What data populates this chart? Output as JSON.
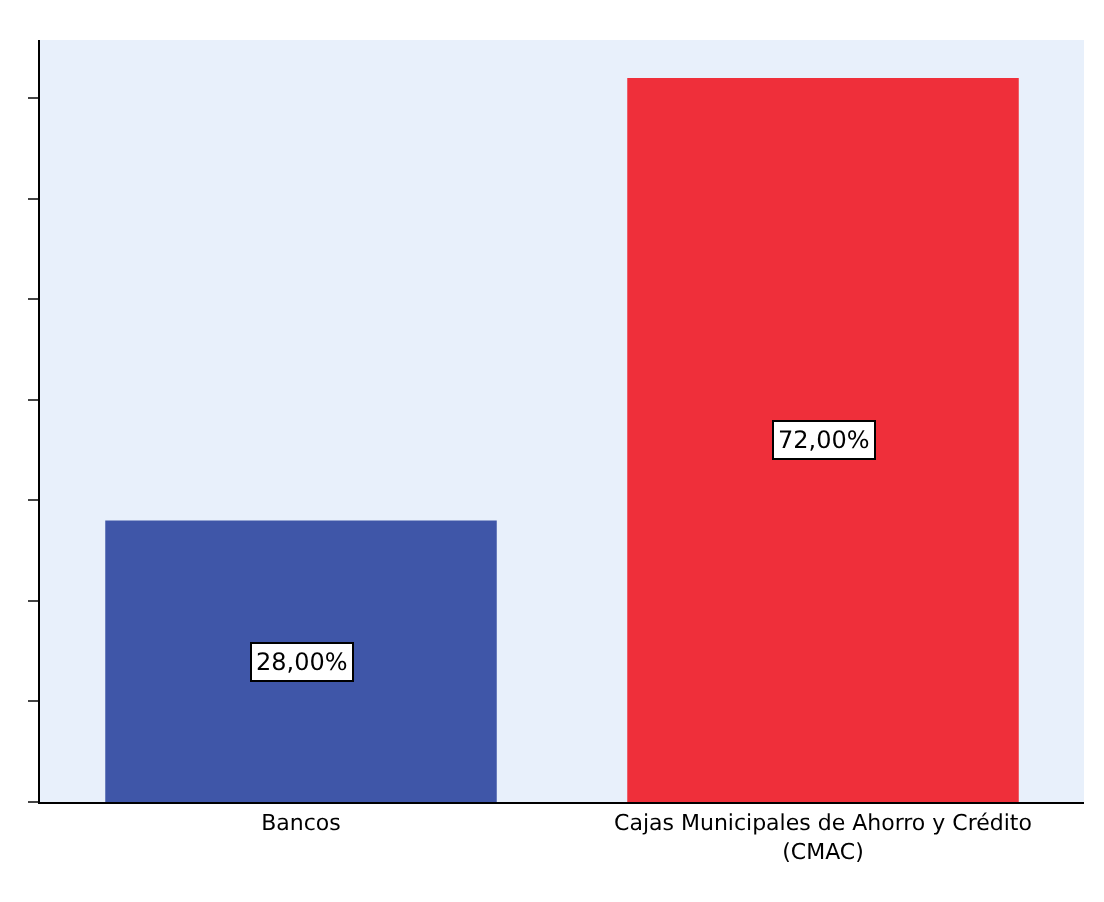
{
  "chart_data": {
    "type": "bar",
    "categories": [
      "Bancos",
      "Cajas Municipales de Ahorro y Crédito (CMAC)"
    ],
    "values": [
      28,
      72
    ],
    "colors": [
      "#3f56a8",
      "#ef2f3a"
    ],
    "value_labels": [
      "28,00%",
      "72,00%"
    ],
    "tick_labels": "x",
    "grid": false
  }
}
